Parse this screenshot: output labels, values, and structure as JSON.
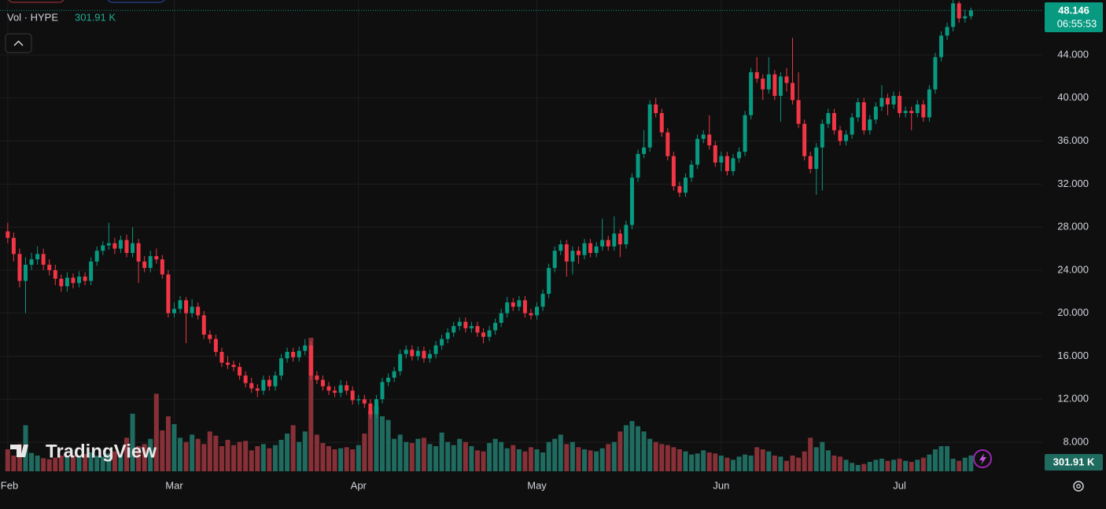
{
  "chart_data": {
    "type": "candlestick",
    "legend_label": "Vol · HYPE",
    "last_volume_label": "301.91 K",
    "countdown": "06:55:53",
    "watermark": "TradingView",
    "up_color": "#089981",
    "down_color": "#f23645",
    "volume_up_color": "#1f6b60",
    "volume_down_color": "#873037",
    "grid": true,
    "xlim": [
      -1.3,
      174
    ],
    "xticks": [
      {
        "value": 0,
        "label": "Feb"
      },
      {
        "value": 28,
        "label": "Mar"
      },
      {
        "value": 59,
        "label": "Apr"
      },
      {
        "value": 89,
        "label": "May"
      },
      {
        "value": 120,
        "label": "Jun"
      },
      {
        "value": 150,
        "label": "Jul"
      }
    ],
    "ylim": [
      5.3,
      49.11
    ],
    "yticks": [
      {
        "value": 8,
        "label": "8.000"
      },
      {
        "value": 12,
        "label": "12.000"
      },
      {
        "value": 16,
        "label": "16.000"
      },
      {
        "value": 20,
        "label": "20.000"
      },
      {
        "value": 24,
        "label": "24.000"
      },
      {
        "value": 28,
        "label": "28.000"
      },
      {
        "value": 32,
        "label": "32.000"
      },
      {
        "value": 36,
        "label": "36.000"
      },
      {
        "value": 40,
        "label": "40.000"
      },
      {
        "value": 44,
        "label": "44.000"
      }
    ],
    "vlim": [
      0,
      4500
    ],
    "candles": [
      [
        27.6,
        28.4,
        26.5,
        27.0
      ],
      [
        27.0,
        27.5,
        24.8,
        25.5
      ],
      [
        25.5,
        26.0,
        22.4,
        23.0
      ],
      [
        23.0,
        25.2,
        20.0,
        24.5
      ],
      [
        24.5,
        25.6,
        24.0,
        25.0
      ],
      [
        25.0,
        26.2,
        24.5,
        25.5
      ],
      [
        25.5,
        26.0,
        24.0,
        24.5
      ],
      [
        24.5,
        25.0,
        23.5,
        24.0
      ],
      [
        24.0,
        24.5,
        22.6,
        23.2
      ],
      [
        23.2,
        23.6,
        22.0,
        22.5
      ],
      [
        22.5,
        23.8,
        22.0,
        23.3
      ],
      [
        23.3,
        23.7,
        22.3,
        22.8
      ],
      [
        22.8,
        23.9,
        22.4,
        23.4
      ],
      [
        23.4,
        23.8,
        22.6,
        23.0
      ],
      [
        23.0,
        25.2,
        22.6,
        24.8
      ],
      [
        24.8,
        26.2,
        24.4,
        25.8
      ],
      [
        25.8,
        26.7,
        25.4,
        26.3
      ],
      [
        26.3,
        28.4,
        25.9,
        26.5
      ],
      [
        26.5,
        27.0,
        25.5,
        26.0
      ],
      [
        26.0,
        27.2,
        25.6,
        26.8
      ],
      [
        26.8,
        27.3,
        25.2,
        25.6
      ],
      [
        25.6,
        28.0,
        25.2,
        26.5
      ],
      [
        26.5,
        26.9,
        22.8,
        24.8
      ],
      [
        24.8,
        25.3,
        23.8,
        24.2
      ],
      [
        24.2,
        25.8,
        23.8,
        25.3
      ],
      [
        25.3,
        26.0,
        24.6,
        25.0
      ],
      [
        25.0,
        25.4,
        23.2,
        23.6
      ],
      [
        23.6,
        24.0,
        19.6,
        20.0
      ],
      [
        20.0,
        21.0,
        19.6,
        20.4
      ],
      [
        20.4,
        21.6,
        20.0,
        21.2
      ],
      [
        21.2,
        21.5,
        17.2,
        20.0
      ],
      [
        20.0,
        21.3,
        19.6,
        20.6
      ],
      [
        20.6,
        21.0,
        19.4,
        19.8
      ],
      [
        19.8,
        20.2,
        17.6,
        18.0
      ],
      [
        18.0,
        18.4,
        17.2,
        17.6
      ],
      [
        17.6,
        18.0,
        16.0,
        16.4
      ],
      [
        16.4,
        16.8,
        15.0,
        15.4
      ],
      [
        15.4,
        16.0,
        14.8,
        15.2
      ],
      [
        15.2,
        15.6,
        14.6,
        15.0
      ],
      [
        15.0,
        15.4,
        13.8,
        14.2
      ],
      [
        14.2,
        14.6,
        13.1,
        13.5
      ],
      [
        13.5,
        14.0,
        12.6,
        13.0
      ],
      [
        13.0,
        13.4,
        12.2,
        12.8
      ],
      [
        12.8,
        14.2,
        12.4,
        13.8
      ],
      [
        13.8,
        14.2,
        12.8,
        13.2
      ],
      [
        13.2,
        14.6,
        12.8,
        14.2
      ],
      [
        14.2,
        16.2,
        13.8,
        15.8
      ],
      [
        15.8,
        16.8,
        15.4,
        16.4
      ],
      [
        16.4,
        16.8,
        15.5,
        15.9
      ],
      [
        15.9,
        16.9,
        15.5,
        16.5
      ],
      [
        16.5,
        17.6,
        16.1,
        17.0
      ],
      [
        17.0,
        17.4,
        13.8,
        14.2
      ],
      [
        14.2,
        14.6,
        13.4,
        13.8
      ],
      [
        13.8,
        14.2,
        12.8,
        13.2
      ],
      [
        13.2,
        13.6,
        12.4,
        12.8
      ],
      [
        12.8,
        13.2,
        12.2,
        12.6
      ],
      [
        12.6,
        13.8,
        12.2,
        13.3
      ],
      [
        13.3,
        13.7,
        12.4,
        12.8
      ],
      [
        12.8,
        13.2,
        11.5,
        11.9
      ],
      [
        11.9,
        12.4,
        11.5,
        12.0
      ],
      [
        12.0,
        12.4,
        11.2,
        11.6
      ],
      [
        11.6,
        12.0,
        10.2,
        10.6
      ],
      [
        10.6,
        12.4,
        10.2,
        12.0
      ],
      [
        12.0,
        14.0,
        11.6,
        13.6
      ],
      [
        13.6,
        14.4,
        13.2,
        14.0
      ],
      [
        14.0,
        15.0,
        13.6,
        14.6
      ],
      [
        14.6,
        16.6,
        14.2,
        16.2
      ],
      [
        16.2,
        17.0,
        15.8,
        16.6
      ],
      [
        16.6,
        17.0,
        15.6,
        16.0
      ],
      [
        16.0,
        16.9,
        15.6,
        16.5
      ],
      [
        16.5,
        16.9,
        15.4,
        15.8
      ],
      [
        15.8,
        16.6,
        15.4,
        16.2
      ],
      [
        16.2,
        17.4,
        15.8,
        17.0
      ],
      [
        17.0,
        18.0,
        16.6,
        17.6
      ],
      [
        17.6,
        18.6,
        17.2,
        18.2
      ],
      [
        18.2,
        19.2,
        17.8,
        18.8
      ],
      [
        18.8,
        19.6,
        18.4,
        19.2
      ],
      [
        19.2,
        19.6,
        18.2,
        18.6
      ],
      [
        18.6,
        19.2,
        18.2,
        18.8
      ],
      [
        18.8,
        19.2,
        17.8,
        18.2
      ],
      [
        18.2,
        18.6,
        17.2,
        17.8
      ],
      [
        17.8,
        18.8,
        17.4,
        18.4
      ],
      [
        18.4,
        19.5,
        18.0,
        19.1
      ],
      [
        19.1,
        20.4,
        18.7,
        20.0
      ],
      [
        20.0,
        21.5,
        19.6,
        21.0
      ],
      [
        21.0,
        21.4,
        20.2,
        20.6
      ],
      [
        20.6,
        21.6,
        20.2,
        21.2
      ],
      [
        21.2,
        21.6,
        19.6,
        20.0
      ],
      [
        20.0,
        20.4,
        19.4,
        19.8
      ],
      [
        19.8,
        21.0,
        19.4,
        20.6
      ],
      [
        20.6,
        22.2,
        20.2,
        21.8
      ],
      [
        21.8,
        24.6,
        21.4,
        24.2
      ],
      [
        24.2,
        26.2,
        23.8,
        25.8
      ],
      [
        25.8,
        26.8,
        25.4,
        26.4
      ],
      [
        26.4,
        26.8,
        23.4,
        24.8
      ],
      [
        24.8,
        26.2,
        23.6,
        25.8
      ],
      [
        25.8,
        26.2,
        24.6,
        25.4
      ],
      [
        25.4,
        26.9,
        25.0,
        26.5
      ],
      [
        26.5,
        26.9,
        25.2,
        25.6
      ],
      [
        25.6,
        26.6,
        25.2,
        26.2
      ],
      [
        26.2,
        28.8,
        25.8,
        26.8
      ],
      [
        26.8,
        27.2,
        25.8,
        26.2
      ],
      [
        26.2,
        29.0,
        25.8,
        27.4
      ],
      [
        27.4,
        27.8,
        25.2,
        26.4
      ],
      [
        26.4,
        28.6,
        26.0,
        28.2
      ],
      [
        28.2,
        33.0,
        27.8,
        32.6
      ],
      [
        32.6,
        35.2,
        32.2,
        34.8
      ],
      [
        34.8,
        37.0,
        34.4,
        35.4
      ],
      [
        35.4,
        39.8,
        35.0,
        39.4
      ],
      [
        39.4,
        40.0,
        38.2,
        38.6
      ],
      [
        38.6,
        39.0,
        36.4,
        36.8
      ],
      [
        36.8,
        37.2,
        34.2,
        34.6
      ],
      [
        34.6,
        35.0,
        31.4,
        31.8
      ],
      [
        31.8,
        32.2,
        30.8,
        31.2
      ],
      [
        31.2,
        33.0,
        30.8,
        32.6
      ],
      [
        32.6,
        34.2,
        32.2,
        33.8
      ],
      [
        33.8,
        36.6,
        33.4,
        36.2
      ],
      [
        36.2,
        37.0,
        35.8,
        36.6
      ],
      [
        36.6,
        38.4,
        35.2,
        35.6
      ],
      [
        35.6,
        36.0,
        33.6,
        34.0
      ],
      [
        34.0,
        35.0,
        33.2,
        34.6
      ],
      [
        34.6,
        35.0,
        32.8,
        33.2
      ],
      [
        33.2,
        34.8,
        32.8,
        34.4
      ],
      [
        34.4,
        35.4,
        34.0,
        35.0
      ],
      [
        35.0,
        38.8,
        34.6,
        38.4
      ],
      [
        38.4,
        42.8,
        38.0,
        42.4
      ],
      [
        42.4,
        43.8,
        41.4,
        41.8
      ],
      [
        41.8,
        42.2,
        39.8,
        40.8
      ],
      [
        40.8,
        43.8,
        40.4,
        42.2
      ],
      [
        42.2,
        42.6,
        39.8,
        40.2
      ],
      [
        40.2,
        42.4,
        37.8,
        42.0
      ],
      [
        42.0,
        42.8,
        40.6,
        41.4
      ],
      [
        41.4,
        45.6,
        39.4,
        39.8
      ],
      [
        39.8,
        42.4,
        37.2,
        37.6
      ],
      [
        37.6,
        38.0,
        34.2,
        34.6
      ],
      [
        34.6,
        35.0,
        33.0,
        33.4
      ],
      [
        33.4,
        35.8,
        31.0,
        35.4
      ],
      [
        35.4,
        38.0,
        31.4,
        37.6
      ],
      [
        37.6,
        39.0,
        37.2,
        38.6
      ],
      [
        38.6,
        39.0,
        36.6,
        37.0
      ],
      [
        37.0,
        37.4,
        35.6,
        36.0
      ],
      [
        36.0,
        37.0,
        35.6,
        36.6
      ],
      [
        36.6,
        38.6,
        36.2,
        38.2
      ],
      [
        38.2,
        40.0,
        37.8,
        39.6
      ],
      [
        39.6,
        40.0,
        36.6,
        37.0
      ],
      [
        37.0,
        38.4,
        36.6,
        38.0
      ],
      [
        38.0,
        39.6,
        37.6,
        39.2
      ],
      [
        39.2,
        41.2,
        38.8,
        40.0
      ],
      [
        40.0,
        40.4,
        38.4,
        39.4
      ],
      [
        39.4,
        40.6,
        39.0,
        40.2
      ],
      [
        40.2,
        40.6,
        38.2,
        38.6
      ],
      [
        38.6,
        39.2,
        38.2,
        38.8
      ],
      [
        38.8,
        39.2,
        37.0,
        38.6
      ],
      [
        38.6,
        39.8,
        38.2,
        39.4
      ],
      [
        39.4,
        39.8,
        37.8,
        38.2
      ],
      [
        38.2,
        41.2,
        37.8,
        40.8
      ],
      [
        40.8,
        44.2,
        40.4,
        43.8
      ],
      [
        43.8,
        46.2,
        43.4,
        45.8
      ],
      [
        45.8,
        47.0,
        45.4,
        46.6
      ],
      [
        46.6,
        49.2,
        46.2,
        48.8
      ],
      [
        48.8,
        49.0,
        47.0,
        47.4
      ],
      [
        47.4,
        48.2,
        47.0,
        47.6
      ],
      [
        47.6,
        48.4,
        47.3,
        48.146
      ]
    ],
    "volume": [
      420,
      300,
      520,
      880,
      350,
      300,
      250,
      230,
      260,
      300,
      270,
      310,
      290,
      330,
      360,
      300,
      280,
      340,
      380,
      320,
      640,
      1100,
      480,
      520,
      620,
      1480,
      780,
      1050,
      900,
      640,
      560,
      700,
      620,
      520,
      760,
      680,
      480,
      600,
      500,
      560,
      580,
      400,
      480,
      520,
      440,
      500,
      600,
      720,
      880,
      560,
      760,
      2550,
      700,
      540,
      480,
      420,
      440,
      460,
      420,
      500,
      720,
      1150,
      1250,
      1050,
      980,
      620,
      700,
      560,
      540,
      620,
      640,
      520,
      480,
      740,
      560,
      500,
      620,
      560,
      480,
      400,
      380,
      540,
      620,
      560,
      440,
      500,
      420,
      380,
      460,
      420,
      360,
      560,
      620,
      700,
      520,
      560,
      460,
      420,
      400,
      380,
      440,
      520,
      560,
      760,
      880,
      960,
      860,
      760,
      620,
      560,
      520,
      500,
      460,
      420,
      380,
      320,
      340,
      400,
      360,
      340,
      300,
      260,
      220,
      280,
      320,
      300,
      460,
      420,
      380,
      300,
      280,
      200,
      300,
      260,
      380,
      640,
      460,
      560,
      400,
      300,
      280,
      220,
      160,
      120,
      140,
      180,
      220,
      240,
      200,
      220,
      240,
      200,
      180,
      220,
      260,
      320,
      420,
      480,
      480,
      240,
      200,
      260,
      301.91
    ]
  }
}
